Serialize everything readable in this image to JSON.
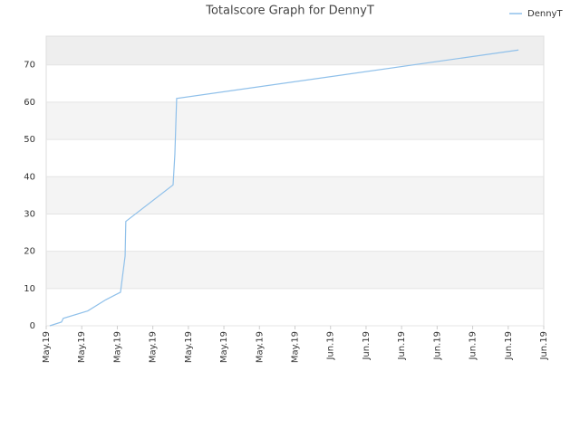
{
  "chart_data": {
    "type": "line",
    "title": "Totalscore Graph for DennyT",
    "x": [
      0.1,
      0.43,
      0.48,
      1.17,
      1.68,
      2.09,
      2.22,
      2.24,
      3.57,
      3.62,
      3.67,
      13.29
    ],
    "series": [
      {
        "name": "DennyT",
        "color": "#8fc0ea",
        "values": [
          0,
          1,
          2,
          4,
          7,
          9,
          18.7,
          28,
          37.8,
          46,
          61,
          74
        ]
      }
    ],
    "xlim": [
      0,
      14
    ],
    "xticks": [
      {
        "value": 0,
        "label": "May.19"
      },
      {
        "value": 1,
        "label": "May.19"
      },
      {
        "value": 2,
        "label": "May.19"
      },
      {
        "value": 3,
        "label": "May.19"
      },
      {
        "value": 4,
        "label": "May.19"
      },
      {
        "value": 5,
        "label": "May.19"
      },
      {
        "value": 6,
        "label": "May.19"
      },
      {
        "value": 7,
        "label": "May.19"
      },
      {
        "value": 8,
        "label": "Jun.19"
      },
      {
        "value": 9,
        "label": "Jun.19"
      },
      {
        "value": 10,
        "label": "Jun.19"
      },
      {
        "value": 11,
        "label": "Jun.19"
      },
      {
        "value": 12,
        "label": "Jun.19"
      },
      {
        "value": 13,
        "label": "Jun.19"
      },
      {
        "value": 14,
        "label": "Jun.19"
      }
    ],
    "ylim": [
      0,
      77.7
    ],
    "yticks": [
      0,
      10,
      20,
      30,
      40,
      50,
      60,
      70
    ],
    "grid": true,
    "legend": "top-right"
  }
}
